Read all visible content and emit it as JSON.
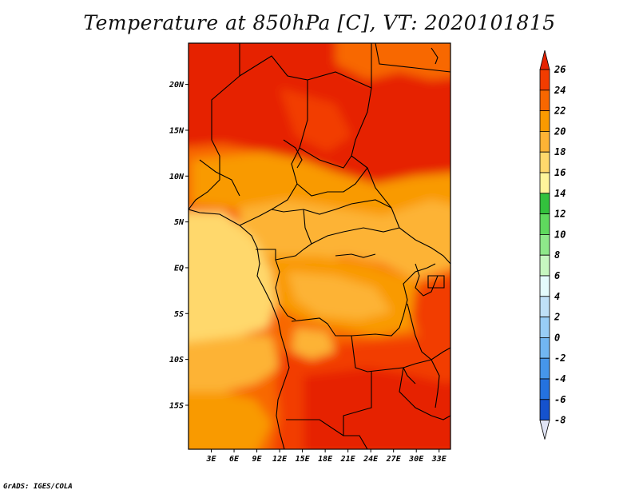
{
  "title": "Temperature at 850hPa [C], VT: 2020101815",
  "credit": "GrADS: IGES/COLA",
  "map": {
    "lat_labels": [
      "20N",
      "15N",
      "10N",
      "5N",
      "EQ",
      "5S",
      "10S",
      "15S"
    ],
    "lat_values": [
      20,
      15,
      10,
      5,
      0,
      -5,
      -10,
      -15
    ],
    "lon_labels": [
      "3E",
      "6E",
      "9E",
      "12E",
      "15E",
      "18E",
      "21E",
      "24E",
      "27E",
      "30E",
      "33E"
    ],
    "lon_values": [
      3,
      6,
      9,
      12,
      15,
      18,
      21,
      24,
      27,
      30,
      33
    ],
    "lon_range": [
      0,
      34.5
    ],
    "lat_range": [
      -19.8,
      24.5
    ]
  },
  "colorbar": {
    "labels": [
      "26",
      "24",
      "22",
      "20",
      "18",
      "16",
      "14",
      "12",
      "10",
      "8",
      "6",
      "4",
      "2",
      "0",
      "-2",
      "-4",
      "-6",
      "-8"
    ],
    "colors": [
      "#e62200",
      "#f23c00",
      "#f86700",
      "#f99a00",
      "#fdb335",
      "#ffd86c",
      "#fff59b",
      "#33c13d",
      "#5fd95e",
      "#8ee88a",
      "#c6f7c0",
      "#e4fbfc",
      "#bfe0f7",
      "#98cdf6",
      "#71b6f2",
      "#4696ea",
      "#2472df",
      "#1552cd",
      "#0b34b1",
      "#03218b",
      "#0c0f5e"
    ],
    "top_color": "#e62200",
    "bottom_color": "#e0e4f5"
  }
}
